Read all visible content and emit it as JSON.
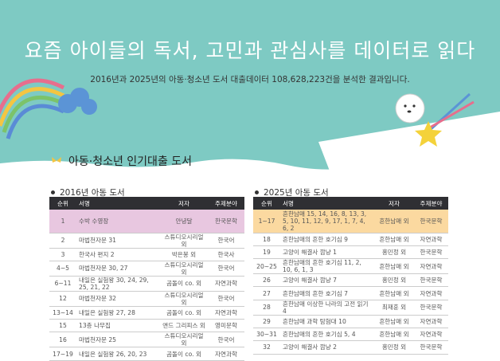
{
  "header": {
    "title": "요즘 아이들의 독서, 고민과 관심사를 데이터로 읽다",
    "subtitle": "2016년과 2025년의 아동·청소년 도서 대출데이터 108,628,223건을 분석한 결과입니다."
  },
  "section": {
    "title": "아동·청소년 인기대출 도서",
    "icon": "butterfly-icon"
  },
  "colors": {
    "hero": "#7ecac3",
    "header_row": "#2f2f33",
    "highlight_2016": "#e8c7e0",
    "highlight_2025": "#fbd9a0"
  },
  "columns": [
    "순위",
    "서명",
    "저자",
    "주제분야"
  ],
  "t2016": {
    "caption": "2016년 아동 도서",
    "rows": [
      [
        "1",
        "수박 수영장",
        "안녕달",
        "한국문학"
      ],
      [
        "2",
        "마법천자문 31",
        "스튜디오시리얼 외",
        "한국어"
      ],
      [
        "3",
        "한국사 편지 2",
        "박은봉 외",
        "한국사"
      ],
      [
        "4~5",
        "마법천자문 30, 27",
        "스튜디오시리얼 외",
        "한국어"
      ],
      [
        "6~11",
        "내일은 실험왕 30, 24, 29, 25, 21, 22",
        "곰돌이 co. 외",
        "자연과학"
      ],
      [
        "12",
        "마법천자문 32",
        "스튜디오시리얼 외",
        "한국어"
      ],
      [
        "13~14",
        "내일은 실험왕 27, 28",
        "곰돌이 co. 외",
        "자연과학"
      ],
      [
        "15",
        "13층 나무집",
        "앤드 그리피스 외",
        "영미문학"
      ],
      [
        "16",
        "마법천자문 25",
        "스튜디오시리얼 외",
        "한국어"
      ],
      [
        "17~19",
        "내일은 실험왕 26, 20, 23",
        "곰돌이 co. 외",
        "자연과학"
      ]
    ]
  },
  "t2025": {
    "caption": "2025년 아동 도서",
    "rows": [
      [
        "1~17",
        "흔한남매 15, 14, 16, 8, 13, 3, 5, 10, 11, 12, 9, 17, 1, 7, 4, 6, 2",
        "흔한남매 외",
        "한국문학"
      ],
      [
        "18",
        "흔한남매의 흔한 호기심 9",
        "흔한남매 외",
        "자연과학"
      ],
      [
        "19",
        "고양이 해결사 깜냥 1",
        "홍민정 외",
        "한국문학"
      ],
      [
        "20~25",
        "흔한남매의 흔한 호기심 11, 2, 10, 6, 1, 3",
        "흔한남매 외",
        "자연과학"
      ],
      [
        "26",
        "고양이 해결사 깜냥 7",
        "홍민정 외",
        "한국문학"
      ],
      [
        "27",
        "흔한남매의 흔한 호기심 7",
        "흔한남매 외",
        "자연과학"
      ],
      [
        "28",
        "흔한남매 이상한 나라의 고전 읽기 4",
        "최재훈 외",
        "한국문학"
      ],
      [
        "29",
        "흔한남매 과학 탐험대 10",
        "흔한남매 외",
        "자연과학"
      ],
      [
        "30~31",
        "흔한남매의 흔한 호기심 5, 4",
        "흔한남매 외",
        "자연과학"
      ],
      [
        "32",
        "고양이 해결사 깜냥 2",
        "홍민정 외",
        "한국문학"
      ]
    ]
  }
}
